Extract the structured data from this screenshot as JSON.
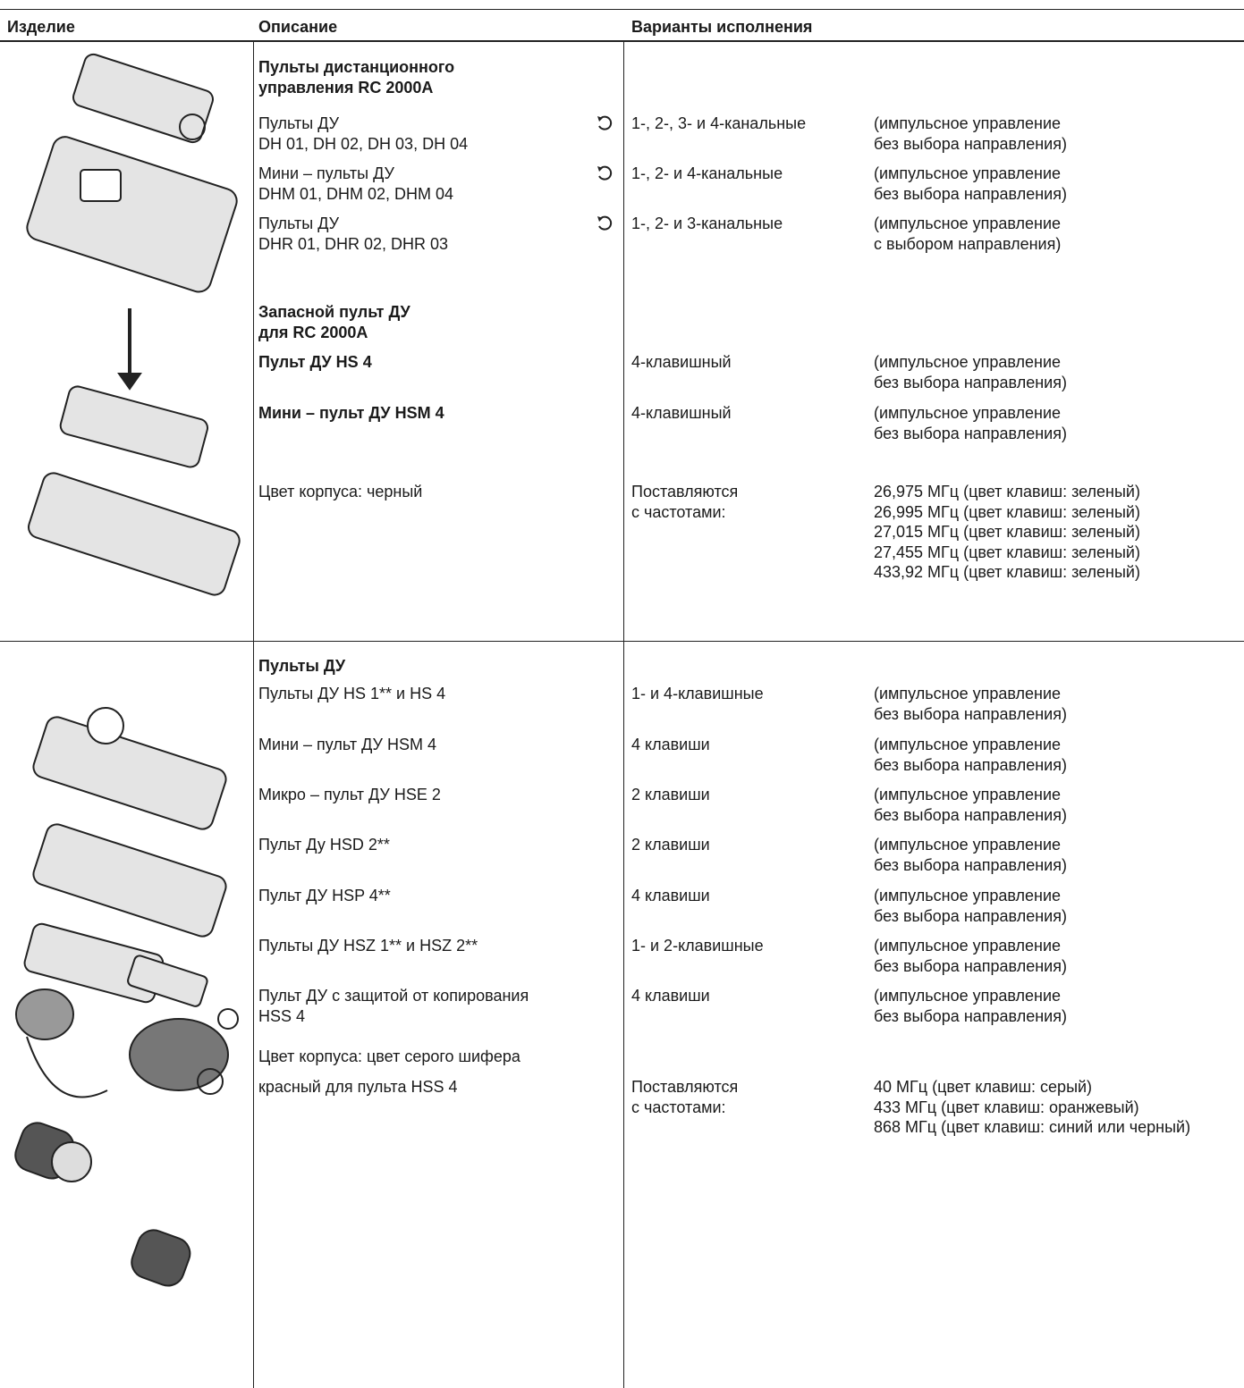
{
  "header": {
    "product": "Изделие",
    "description": "Описание",
    "variants": "Варианты исполнения"
  },
  "section_1": {
    "title": [
      "Пульты дистанционного",
      "управления RC 2000A"
    ],
    "items": [
      {
        "description": [
          "Пульты ДУ",
          "DH 01, DH 02, DH 03, DH 04"
        ],
        "variant": "1-, 2-, 3- и 4-канальные",
        "note": [
          "(импульсное управление",
          "без выбора направления)"
        ]
      },
      {
        "description": [
          "Мини – пульты ДУ",
          "DHM 01, DHM 02, DHM 04"
        ],
        "variant": "1-, 2- и 4-канальные",
        "note": [
          "(импульсное управление",
          "без выбора направления)"
        ]
      },
      {
        "description": [
          "Пульты ДУ",
          "DHR 01, DHR 02, DHR 03"
        ],
        "variant": "1-, 2- и 3-канальные",
        "note": [
          "(импульсное управление",
          "с выбором направления)"
        ]
      }
    ],
    "spare_title": [
      "Запасной пульт ДУ",
      "для RC 2000A"
    ],
    "spare_items": [
      {
        "description": "Пульт ДУ HS 4",
        "variant": "4-клавишный",
        "note": [
          "(импульсное управление",
          "без выбора направления)"
        ]
      },
      {
        "description": "Мини – пульт ДУ HSM 4",
        "variant": "4-клавишный",
        "note": [
          "(импульсное управление",
          "без выбора направления)"
        ]
      }
    ],
    "housing": "Цвет корпуса: черный",
    "supply": [
      "Поставляются",
      "с частотами:"
    ],
    "frequencies": [
      "26,975 МГц (цвет клавиш: зеленый)",
      "26,995 МГц (цвет клавиш: зеленый)",
      "27,015 МГц (цвет клавиш: зеленый)",
      "27,455 МГц (цвет клавиш: зеленый)",
      "433,92 МГц (цвет клавиш: зеленый)"
    ]
  },
  "section_2": {
    "title": "Пульты ДУ",
    "items": [
      {
        "description": [
          "Пульты ДУ HS 1** и HS 4"
        ],
        "variant": "1- и 4-клавишные",
        "note": [
          "(импульсное управление",
          "без выбора направления)"
        ]
      },
      {
        "description": [
          "Мини – пульт ДУ HSM 4"
        ],
        "variant": "4 клавиши",
        "note": [
          "(импульсное управление",
          "без выбора направления)"
        ]
      },
      {
        "description": [
          "Микро – пульт ДУ HSE 2"
        ],
        "variant": "2 клавиши",
        "note": [
          "(импульсное управление",
          "без выбора направления)"
        ]
      },
      {
        "description": [
          "Пульт Ду HSD 2**"
        ],
        "variant": "2 клавиши",
        "note": [
          "(импульсное управление",
          "без выбора направления)"
        ]
      },
      {
        "description": [
          "Пульт ДУ HSP 4**"
        ],
        "variant": "4 клавиши",
        "note": [
          "(импульсное управление",
          "без выбора направления)"
        ]
      },
      {
        "description": [
          "Пульты ДУ HSZ 1** и HSZ 2**"
        ],
        "variant": "1- и 2-клавишные",
        "note": [
          "(импульсное управление",
          "без выбора направления)"
        ]
      },
      {
        "description": [
          "Пульт ДУ с защитой от копирования",
          "HSS 4"
        ],
        "variant": "4 клавиши",
        "note": [
          "(импульсное управление",
          "без выбора направления)"
        ]
      }
    ],
    "housing": [
      "Цвет корпуса: цвет серого шифера",
      "красный для пульта HSS 4"
    ],
    "supply": [
      "Поставляются",
      "с частотами:"
    ],
    "frequencies": [
      "40 МГц (цвет клавиш: серый)",
      "433 МГц (цвет клавиш: оранжевый)",
      "868 МГц (цвет клавиш: синий или черный)"
    ]
  }
}
